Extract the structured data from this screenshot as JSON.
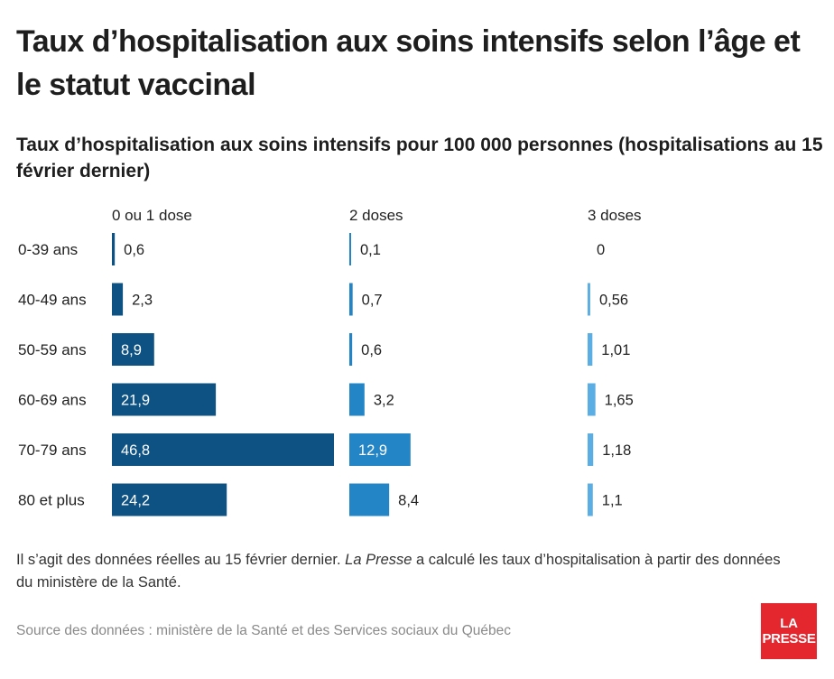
{
  "title": "Taux d’hospitalisation aux soins intensifs selon l’âge et le statut vaccinal",
  "subtitle": "Taux d’hospitalisation aux soins intensifs pour 100 000 personnes (hospitalisations au 15 février dernier)",
  "note": {
    "before": "Il s’agit des données réelles au 15 février dernier. ",
    "emphasis": "La Presse",
    "after": " a calculé les taux d’hospitalisation à partir des données du ministère de la Santé."
  },
  "source": "Source des données : ministère de la Santé et des Services sociaux du Québec",
  "logo": {
    "line1": "LA",
    "line2": "PRESSE",
    "color": "#e4262e"
  },
  "chart_data": {
    "type": "bar",
    "orientation": "horizontal",
    "layout": "small-multiples",
    "categories": [
      "0-39 ans",
      "40-49 ans",
      "50-59 ans",
      "60-69 ans",
      "70-79 ans",
      "80 et plus"
    ],
    "xlim": [
      0,
      46.8
    ],
    "series": [
      {
        "name": "0 ou 1 dose",
        "color": "#0d5283",
        "values": [
          0.6,
          2.3,
          8.9,
          21.9,
          46.8,
          24.2
        ],
        "labels": [
          "0,6",
          "2,3",
          "8,9",
          "21,9",
          "46,8",
          "24,2"
        ]
      },
      {
        "name": "2 doses",
        "color": "#2384c6",
        "values": [
          0.1,
          0.7,
          0.6,
          3.2,
          12.9,
          8.4
        ],
        "labels": [
          "0,1",
          "0,7",
          "0,6",
          "3,2",
          "12,9",
          "8,4"
        ]
      },
      {
        "name": "3 doses",
        "color": "#5aaee3",
        "values": [
          0,
          0.56,
          1.01,
          1.65,
          1.18,
          1.1
        ],
        "labels": [
          "0",
          "0,56",
          "1,01",
          "1,65",
          "1,18",
          "1,1"
        ]
      }
    ]
  }
}
